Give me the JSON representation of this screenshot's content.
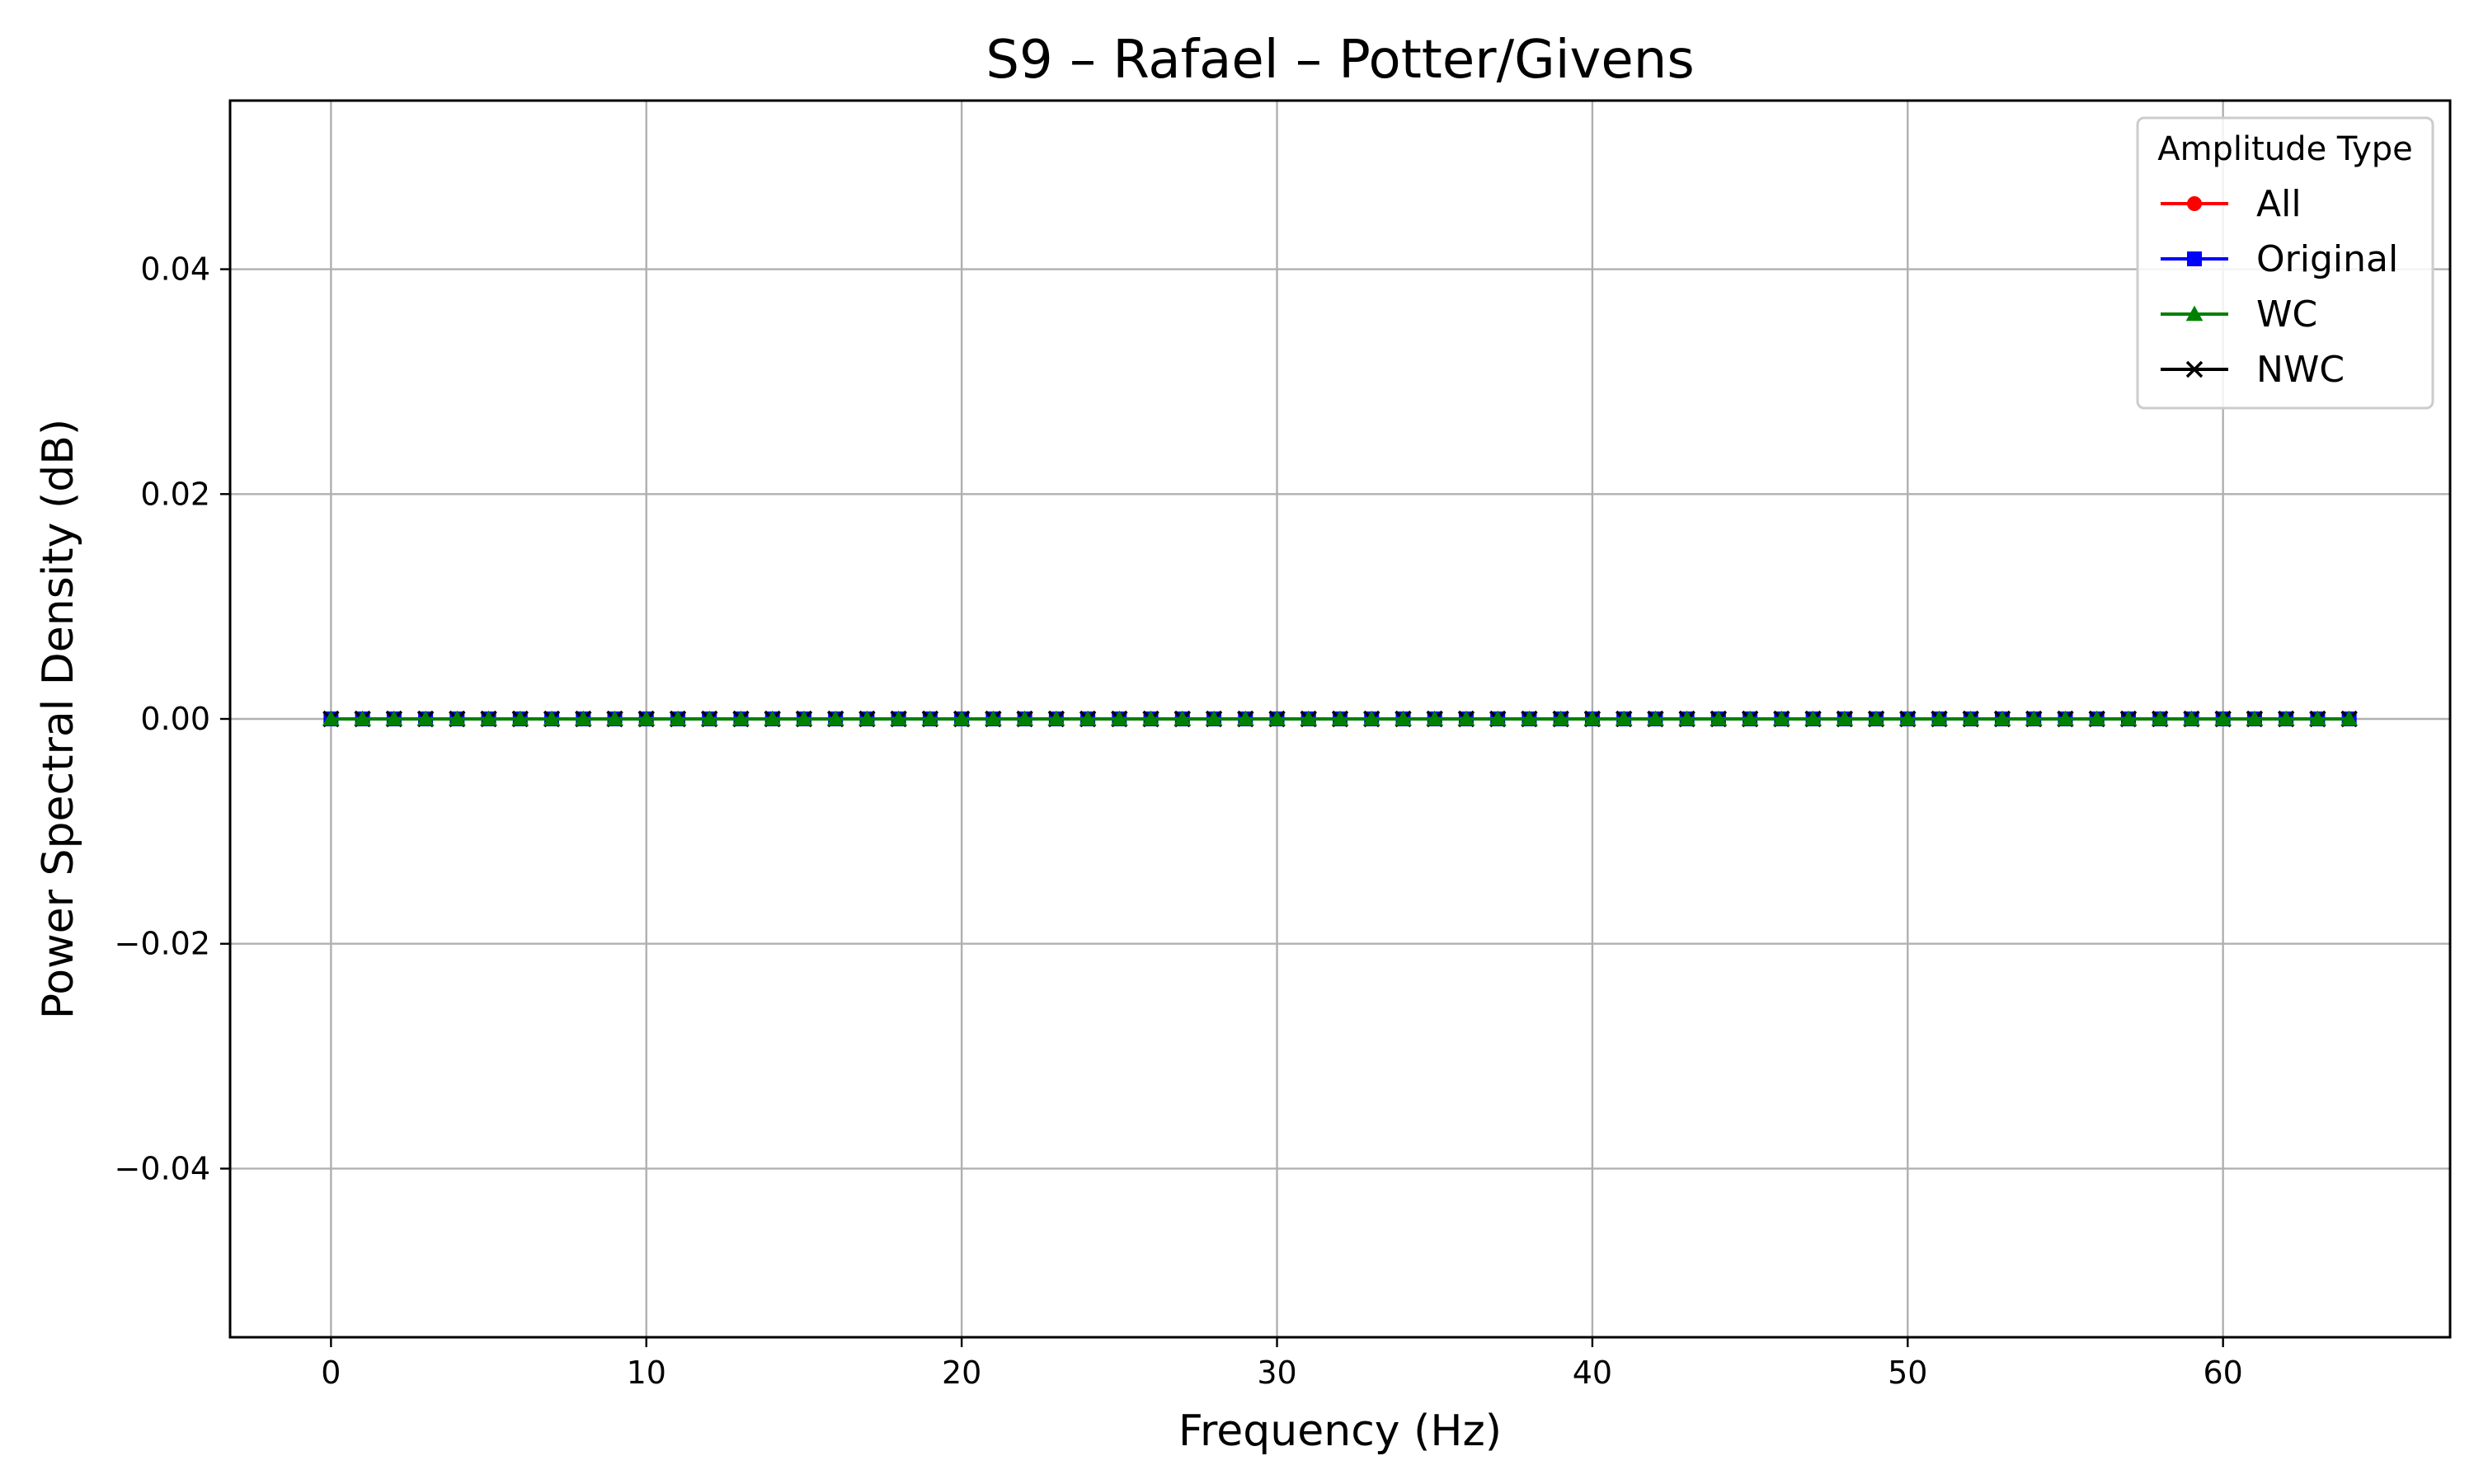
{
  "chart_data": {
    "type": "line",
    "title": "S9 – Rafael – Potter/Givens",
    "xlabel": "Frequency (Hz)",
    "ylabel": "Power Spectral Density (dB)",
    "xlim": [
      -3.2,
      67.2
    ],
    "ylim": [
      -0.055,
      0.055
    ],
    "xticks": [
      0,
      10,
      20,
      30,
      40,
      50,
      60
    ],
    "xtick_labels": [
      "0",
      "10",
      "20",
      "30",
      "40",
      "50",
      "60"
    ],
    "yticks": [
      0.04,
      0.02,
      0.0,
      -0.02,
      -0.04
    ],
    "ytick_labels": [
      "0.04",
      "0.02",
      "0.00",
      "−0.02",
      "−0.04"
    ],
    "grid": true,
    "legend": {
      "title": "Amplitude Type",
      "placement": "top-right"
    },
    "x": [
      0,
      1,
      2,
      3,
      4,
      5,
      6,
      7,
      8,
      9,
      10,
      11,
      12,
      13,
      14,
      15,
      16,
      17,
      18,
      19,
      20,
      21,
      22,
      23,
      24,
      25,
      26,
      27,
      28,
      29,
      30,
      31,
      32,
      33,
      34,
      35,
      36,
      37,
      38,
      39,
      40,
      41,
      42,
      43,
      44,
      45,
      46,
      47,
      48,
      49,
      50,
      51,
      52,
      53,
      54,
      55,
      56,
      57,
      58,
      59,
      60,
      61,
      62,
      63,
      64
    ],
    "series": [
      {
        "name": "All",
        "color": "#ff0000",
        "marker": "circle",
        "values": [
          0,
          0,
          0,
          0,
          0,
          0,
          0,
          0,
          0,
          0,
          0,
          0,
          0,
          0,
          0,
          0,
          0,
          0,
          0,
          0,
          0,
          0,
          0,
          0,
          0,
          0,
          0,
          0,
          0,
          0,
          0,
          0,
          0,
          0,
          0,
          0,
          0,
          0,
          0,
          0,
          0,
          0,
          0,
          0,
          0,
          0,
          0,
          0,
          0,
          0,
          0,
          0,
          0,
          0,
          0,
          0,
          0,
          0,
          0,
          0,
          0,
          0,
          0,
          0,
          0
        ]
      },
      {
        "name": "Original",
        "color": "#0000ff",
        "marker": "square",
        "values": [
          0,
          0,
          0,
          0,
          0,
          0,
          0,
          0,
          0,
          0,
          0,
          0,
          0,
          0,
          0,
          0,
          0,
          0,
          0,
          0,
          0,
          0,
          0,
          0,
          0,
          0,
          0,
          0,
          0,
          0,
          0,
          0,
          0,
          0,
          0,
          0,
          0,
          0,
          0,
          0,
          0,
          0,
          0,
          0,
          0,
          0,
          0,
          0,
          0,
          0,
          0,
          0,
          0,
          0,
          0,
          0,
          0,
          0,
          0,
          0,
          0,
          0,
          0,
          0,
          0
        ]
      },
      {
        "name": "WC",
        "color": "#008000",
        "marker": "triangle",
        "values": [
          0,
          0,
          0,
          0,
          0,
          0,
          0,
          0,
          0,
          0,
          0,
          0,
          0,
          0,
          0,
          0,
          0,
          0,
          0,
          0,
          0,
          0,
          0,
          0,
          0,
          0,
          0,
          0,
          0,
          0,
          0,
          0,
          0,
          0,
          0,
          0,
          0,
          0,
          0,
          0,
          0,
          0,
          0,
          0,
          0,
          0,
          0,
          0,
          0,
          0,
          0,
          0,
          0,
          0,
          0,
          0,
          0,
          0,
          0,
          0,
          0,
          0,
          0,
          0,
          0
        ]
      },
      {
        "name": "NWC",
        "color": "#000000",
        "marker": "x",
        "values": [
          0,
          0,
          0,
          0,
          0,
          0,
          0,
          0,
          0,
          0,
          0,
          0,
          0,
          0,
          0,
          0,
          0,
          0,
          0,
          0,
          0,
          0,
          0,
          0,
          0,
          0,
          0,
          0,
          0,
          0,
          0,
          0,
          0,
          0,
          0,
          0,
          0,
          0,
          0,
          0,
          0,
          0,
          0,
          0,
          0,
          0,
          0,
          0,
          0,
          0,
          0,
          0,
          0,
          0,
          0,
          0,
          0,
          0,
          0,
          0,
          0,
          0,
          0,
          0,
          0
        ]
      }
    ],
    "draw_order": [
      "All",
      "Original",
      "NWC",
      "WC"
    ]
  },
  "colors": {
    "grid": "#b0b0b0",
    "axes": "#000000",
    "legend_border": "#cccccc"
  }
}
